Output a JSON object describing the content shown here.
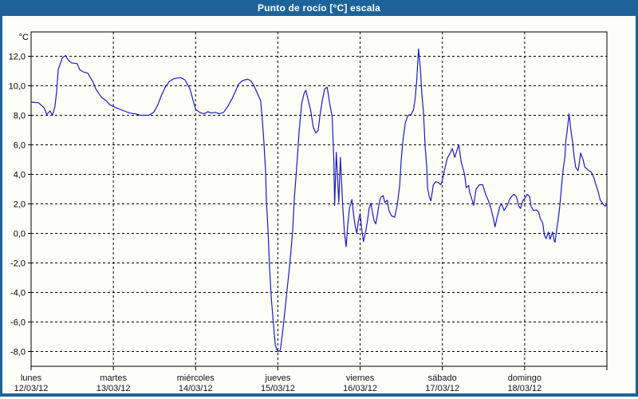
{
  "window": {
    "title": "Punto de rocío [°C] escala"
  },
  "colors": {
    "frame_blue": "#1d6399",
    "plot_bg": "#fdfef7",
    "grid_black": "#000000",
    "line_blue": "#1a1ac8",
    "label_dark": "#101028"
  },
  "chart_data": {
    "type": "line",
    "title": "Punto de rocío [°C] escala",
    "ylabel": "°C",
    "xlabel": "",
    "grid": true,
    "legend_position": "none",
    "ylim": [
      -9.0,
      13.65
    ],
    "y_ticks": [
      12,
      10,
      8,
      6,
      4,
      2,
      0,
      -2,
      -4,
      -6,
      -8
    ],
    "y_tick_labels": [
      "12,0",
      "10,0",
      "8,0",
      "6,0",
      "4,0",
      "2,0",
      "0,0",
      "-2,0",
      "-4,0",
      "-6,0",
      "-8,0"
    ],
    "x_days": [
      {
        "name": "lunes",
        "date": "12/03/12"
      },
      {
        "name": "martes",
        "date": "13/03/12"
      },
      {
        "name": "miércoles",
        "date": "14/03/12"
      },
      {
        "name": "jueves",
        "date": "15/03/12"
      },
      {
        "name": "viernes",
        "date": "16/03/12"
      },
      {
        "name": "sábado",
        "date": "17/03/12"
      },
      {
        "name": "domingo",
        "date": "18/03/12"
      }
    ],
    "x_unit": "days since 12/03/12 00:00",
    "series": [
      {
        "name": "Punto de rocío",
        "points": [
          [
            0.0,
            8.9
          ],
          [
            0.09,
            8.85
          ],
          [
            0.16,
            8.5
          ],
          [
            0.19,
            8.05
          ],
          [
            0.23,
            8.3
          ],
          [
            0.26,
            8.0
          ],
          [
            0.29,
            8.6
          ],
          [
            0.31,
            9.6
          ],
          [
            0.33,
            11.1
          ],
          [
            0.38,
            11.9
          ],
          [
            0.42,
            12.05
          ],
          [
            0.45,
            11.75
          ],
          [
            0.49,
            11.55
          ],
          [
            0.56,
            11.5
          ],
          [
            0.59,
            11.1
          ],
          [
            0.63,
            10.95
          ],
          [
            0.69,
            10.85
          ],
          [
            0.72,
            10.55
          ],
          [
            0.75,
            10.3
          ],
          [
            0.78,
            9.85
          ],
          [
            0.82,
            9.5
          ],
          [
            0.86,
            9.2
          ],
          [
            0.91,
            9.0
          ],
          [
            0.96,
            8.7
          ],
          [
            1.0,
            8.6
          ],
          [
            1.06,
            8.45
          ],
          [
            1.13,
            8.3
          ],
          [
            1.2,
            8.15
          ],
          [
            1.27,
            8.1
          ],
          [
            1.33,
            8.0
          ],
          [
            1.43,
            8.0
          ],
          [
            1.49,
            8.2
          ],
          [
            1.54,
            8.7
          ],
          [
            1.58,
            9.3
          ],
          [
            1.63,
            9.9
          ],
          [
            1.68,
            10.3
          ],
          [
            1.74,
            10.5
          ],
          [
            1.82,
            10.55
          ],
          [
            1.87,
            10.4
          ],
          [
            1.93,
            9.8
          ],
          [
            1.97,
            9.0
          ],
          [
            2.0,
            8.4
          ],
          [
            2.05,
            8.2
          ],
          [
            2.1,
            8.1
          ],
          [
            2.15,
            8.25
          ],
          [
            2.19,
            8.15
          ],
          [
            2.24,
            8.2
          ],
          [
            2.29,
            8.1
          ],
          [
            2.34,
            8.2
          ],
          [
            2.39,
            8.6
          ],
          [
            2.44,
            9.1
          ],
          [
            2.49,
            9.7
          ],
          [
            2.52,
            10.1
          ],
          [
            2.57,
            10.35
          ],
          [
            2.63,
            10.45
          ],
          [
            2.67,
            10.35
          ],
          [
            2.71,
            10.0
          ],
          [
            2.75,
            9.5
          ],
          [
            2.79,
            9.0
          ],
          [
            2.81,
            7.8
          ],
          [
            2.83,
            6.2
          ],
          [
            2.85,
            4.2
          ],
          [
            2.86,
            2.3
          ],
          [
            2.88,
            0.2
          ],
          [
            2.9,
            -2.4
          ],
          [
            2.92,
            -4.4
          ],
          [
            2.95,
            -6.4
          ],
          [
            2.97,
            -7.6
          ],
          [
            2.99,
            -7.9
          ],
          [
            3.01,
            -8.0
          ],
          [
            3.03,
            -7.9
          ],
          [
            3.06,
            -6.6
          ],
          [
            3.09,
            -5.0
          ],
          [
            3.12,
            -3.4
          ],
          [
            3.15,
            -1.8
          ],
          [
            3.18,
            0.2
          ],
          [
            3.2,
            2.4
          ],
          [
            3.23,
            4.6
          ],
          [
            3.26,
            7.0
          ],
          [
            3.29,
            8.8
          ],
          [
            3.32,
            9.5
          ],
          [
            3.34,
            9.7
          ],
          [
            3.37,
            9.0
          ],
          [
            3.4,
            8.3
          ],
          [
            3.43,
            7.2
          ],
          [
            3.46,
            6.8
          ],
          [
            3.49,
            7.0
          ],
          [
            3.51,
            7.9
          ],
          [
            3.54,
            9.0
          ],
          [
            3.57,
            9.8
          ],
          [
            3.6,
            9.9
          ],
          [
            3.63,
            8.8
          ],
          [
            3.66,
            7.9
          ],
          [
            3.68,
            5.0
          ],
          [
            3.69,
            1.9
          ],
          [
            3.71,
            5.5
          ],
          [
            3.74,
            2.1
          ],
          [
            3.76,
            5.15
          ],
          [
            3.79,
            1.7
          ],
          [
            3.81,
            0.0
          ],
          [
            3.83,
            -0.9
          ],
          [
            3.85,
            0.6
          ],
          [
            3.87,
            1.7
          ],
          [
            3.9,
            2.3
          ],
          [
            3.92,
            1.3
          ],
          [
            3.94,
            0.5
          ],
          [
            3.96,
            0.0
          ],
          [
            3.98,
            0.9
          ],
          [
            4.0,
            1.35
          ],
          [
            4.02,
            0.3
          ],
          [
            4.04,
            -0.55
          ],
          [
            4.07,
            0.2
          ],
          [
            4.09,
            0.9
          ],
          [
            4.11,
            1.7
          ],
          [
            4.13,
            2.05
          ],
          [
            4.15,
            1.45
          ],
          [
            4.17,
            0.85
          ],
          [
            4.19,
            0.65
          ],
          [
            4.21,
            1.25
          ],
          [
            4.23,
            2.0
          ],
          [
            4.25,
            2.45
          ],
          [
            4.28,
            2.55
          ],
          [
            4.3,
            2.1
          ],
          [
            4.33,
            2.25
          ],
          [
            4.35,
            1.55
          ],
          [
            4.38,
            1.2
          ],
          [
            4.42,
            1.1
          ],
          [
            4.45,
            1.9
          ],
          [
            4.48,
            3.2
          ],
          [
            4.5,
            5.0
          ],
          [
            4.52,
            6.3
          ],
          [
            4.55,
            7.5
          ],
          [
            4.58,
            8.0
          ],
          [
            4.62,
            8.05
          ],
          [
            4.65,
            8.4
          ],
          [
            4.67,
            9.2
          ],
          [
            4.69,
            10.5
          ],
          [
            4.71,
            12.5
          ],
          [
            4.73,
            11.3
          ],
          [
            4.75,
            9.5
          ],
          [
            4.77,
            8.2
          ],
          [
            4.79,
            5.9
          ],
          [
            4.81,
            4.5
          ],
          [
            4.82,
            3.1
          ],
          [
            4.84,
            2.5
          ],
          [
            4.86,
            2.2
          ],
          [
            4.89,
            3.3
          ],
          [
            4.92,
            3.5
          ],
          [
            4.95,
            3.45
          ],
          [
            4.98,
            3.3
          ],
          [
            5.0,
            3.6
          ],
          [
            5.03,
            4.4
          ],
          [
            5.06,
            5.1
          ],
          [
            5.09,
            5.4
          ],
          [
            5.12,
            5.75
          ],
          [
            5.15,
            5.15
          ],
          [
            5.17,
            5.5
          ],
          [
            5.2,
            6.0
          ],
          [
            5.23,
            4.8
          ],
          [
            5.27,
            4.0
          ],
          [
            5.29,
            3.1
          ],
          [
            5.32,
            3.25
          ],
          [
            5.33,
            2.8
          ],
          [
            5.36,
            2.3
          ],
          [
            5.38,
            1.9
          ],
          [
            5.41,
            3.0
          ],
          [
            5.45,
            3.3
          ],
          [
            5.49,
            3.3
          ],
          [
            5.52,
            2.75
          ],
          [
            5.56,
            2.2
          ],
          [
            5.59,
            1.7
          ],
          [
            5.62,
            1.0
          ],
          [
            5.64,
            0.45
          ],
          [
            5.67,
            1.2
          ],
          [
            5.7,
            1.85
          ],
          [
            5.72,
            2.0
          ],
          [
            5.75,
            1.55
          ],
          [
            5.79,
            1.9
          ],
          [
            5.82,
            2.35
          ],
          [
            5.85,
            2.55
          ],
          [
            5.87,
            2.65
          ],
          [
            5.9,
            2.5
          ],
          [
            5.93,
            1.85
          ],
          [
            5.95,
            1.7
          ],
          [
            5.98,
            2.25
          ],
          [
            6.0,
            2.35
          ],
          [
            6.03,
            2.65
          ],
          [
            6.06,
            2.5
          ],
          [
            6.08,
            1.8
          ],
          [
            6.11,
            1.55
          ],
          [
            6.14,
            1.6
          ],
          [
            6.17,
            1.45
          ],
          [
            6.19,
            1.0
          ],
          [
            6.22,
            0.7
          ],
          [
            6.24,
            -0.1
          ],
          [
            6.26,
            -0.35
          ],
          [
            6.29,
            0.1
          ],
          [
            6.31,
            -0.4
          ],
          [
            6.34,
            0.1
          ],
          [
            6.36,
            -0.5
          ],
          [
            6.37,
            -0.6
          ],
          [
            6.39,
            0.3
          ],
          [
            6.41,
            1.0
          ],
          [
            6.43,
            2.0
          ],
          [
            6.45,
            3.3
          ],
          [
            6.47,
            4.4
          ],
          [
            6.49,
            5.2
          ],
          [
            6.5,
            6.2
          ],
          [
            6.52,
            7.1
          ],
          [
            6.54,
            8.1
          ],
          [
            6.56,
            7.1
          ],
          [
            6.58,
            6.3
          ],
          [
            6.6,
            5.3
          ],
          [
            6.62,
            4.5
          ],
          [
            6.65,
            4.25
          ],
          [
            6.67,
            5.0
          ],
          [
            6.68,
            5.45
          ],
          [
            6.71,
            5.0
          ],
          [
            6.73,
            4.5
          ],
          [
            6.77,
            4.3
          ],
          [
            6.81,
            4.15
          ],
          [
            6.84,
            3.8
          ],
          [
            6.86,
            3.4
          ],
          [
            6.89,
            2.9
          ],
          [
            6.92,
            2.25
          ],
          [
            6.96,
            1.95
          ],
          [
            6.98,
            1.85
          ],
          [
            7.0,
            2.0
          ]
        ]
      }
    ]
  }
}
